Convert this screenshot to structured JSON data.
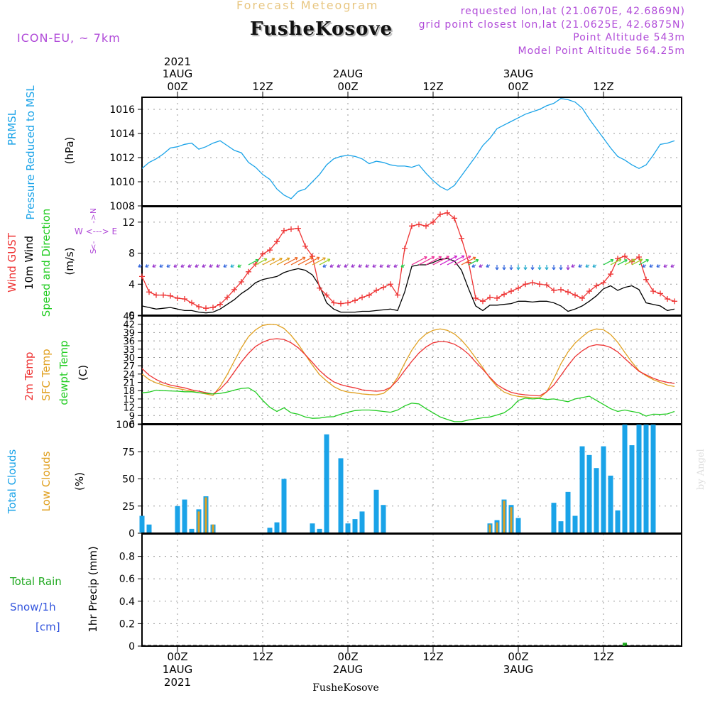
{
  "header": {
    "super_title": "Forecast Meteogram",
    "title": "FusheKosove",
    "model": "ICON-EU, ~ 7km",
    "requested": "requested lon,lat (21.0670E, 42.6869N)",
    "closest": "grid point closest lon,lat (21.0625E, 42.6875N)",
    "point_altitude": "Point Altitude 543m",
    "model_altitude": "Model Point Altitude 564.25m"
  },
  "credit": "by Angel",
  "colors": {
    "pressure": "#1aa3e8",
    "gust": "#ee3333",
    "wind": "#000000",
    "temp2m": "#ee3333",
    "sfc": "#e0a020",
    "dewpt": "#22cc22",
    "total_clouds": "#1aa3e8",
    "low_clouds": "#e0a020",
    "rain": "#22aa22",
    "snow": "#3355dd",
    "compass": "#b04ad8"
  },
  "time_axis": {
    "top_year": "2021",
    "top_labels": [
      {
        "h": 0,
        "l1": "1AUG",
        "l2": "00Z"
      },
      {
        "h": 12,
        "l1": "",
        "l2": "12Z"
      },
      {
        "h": 24,
        "l1": "2AUG",
        "l2": "00Z"
      },
      {
        "h": 36,
        "l1": "",
        "l2": "12Z"
      },
      {
        "h": 48,
        "l1": "3AUG",
        "l2": "00Z"
      },
      {
        "h": 60,
        "l1": "",
        "l2": "12Z"
      }
    ],
    "bottom_labels": [
      {
        "h": 0,
        "l1": "00Z",
        "l2": "1AUG",
        "l3": "2021"
      },
      {
        "h": 12,
        "l1": "12Z",
        "l2": "",
        "l3": ""
      },
      {
        "h": 24,
        "l1": "00Z",
        "l2": "2AUG",
        "l3": ""
      },
      {
        "h": 36,
        "l1": "12Z",
        "l2": "",
        "l3": ""
      },
      {
        "h": 48,
        "l1": "00Z",
        "l2": "3AUG",
        "l3": ""
      },
      {
        "h": 60,
        "l1": "12Z",
        "l2": "",
        "l3": ""
      }
    ],
    "bottom_title": "FusheKosove"
  },
  "chart_data": [
    {
      "type": "line",
      "id": "pressure",
      "ylabels": [
        "PRMSL",
        "Pressure Reduced to MSL",
        "(hPa)"
      ],
      "ylim": [
        1008,
        1017
      ],
      "yticks": [
        1008,
        1010,
        1012,
        1014,
        1016
      ],
      "x_hours": [
        -5,
        -4,
        -3,
        -2,
        -1,
        0,
        1,
        2,
        3,
        4,
        5,
        6,
        7,
        8,
        9,
        10,
        11,
        12,
        13,
        14,
        15,
        16,
        17,
        18,
        19,
        20,
        21,
        22,
        23,
        24,
        25,
        26,
        27,
        28,
        29,
        30,
        31,
        32,
        33,
        34,
        35,
        36,
        37,
        38,
        39,
        40,
        41,
        42,
        43,
        44,
        45,
        46,
        47,
        48,
        49,
        50,
        51,
        52,
        53,
        54,
        55,
        56,
        57,
        58,
        59,
        60,
        61,
        62,
        63,
        64,
        65,
        66,
        67,
        68,
        69,
        70
      ],
      "values": [
        1011.1,
        1011.6,
        1011.9,
        1012.3,
        1012.8,
        1012.9,
        1013.1,
        1013.2,
        1012.7,
        1012.9,
        1013.2,
        1013.4,
        1013.0,
        1012.6,
        1012.4,
        1011.6,
        1011.2,
        1010.6,
        1010.2,
        1009.4,
        1008.9,
        1008.6,
        1009.2,
        1009.4,
        1010.0,
        1010.6,
        1011.4,
        1011.9,
        1012.1,
        1012.2,
        1012.1,
        1011.9,
        1011.5,
        1011.7,
        1011.6,
        1011.4,
        1011.3,
        1011.3,
        1011.2,
        1011.4,
        1010.7,
        1010.1,
        1009.6,
        1009.3,
        1009.7,
        1010.5,
        1011.3,
        1012.1,
        1013.0,
        1013.6,
        1014.4,
        1014.7,
        1015.0,
        1015.3,
        1015.6,
        1015.8,
        1016.0,
        1016.3,
        1016.5,
        1016.9,
        1016.8,
        1016.6,
        1016.1,
        1015.2,
        1014.4,
        1013.6,
        1012.8,
        1012.1,
        1011.8,
        1011.4,
        1011.1,
        1011.4,
        1012.2,
        1013.1,
        1013.2,
        1013.4
      ]
    },
    {
      "type": "line",
      "id": "wind",
      "ylabels": [
        "Wind GUST",
        "10m Wind",
        "Speed and Direction",
        "(m/s)"
      ],
      "compass": [
        "N",
        "-",
        ">",
        "W <-",
        "-",
        "-> E",
        "<",
        "-",
        "S"
      ],
      "ylim": [
        0,
        14
      ],
      "yticks": [
        0,
        4,
        8,
        12
      ],
      "x_hours": [
        -5,
        -4,
        -3,
        -2,
        -1,
        0,
        1,
        2,
        3,
        4,
        5,
        6,
        7,
        8,
        9,
        10,
        11,
        12,
        13,
        14,
        15,
        16,
        17,
        18,
        19,
        20,
        21,
        22,
        23,
        24,
        25,
        26,
        27,
        28,
        29,
        30,
        31,
        32,
        33,
        34,
        35,
        36,
        37,
        38,
        39,
        40,
        41,
        42,
        43,
        44,
        45,
        46,
        47,
        48,
        49,
        50,
        51,
        52,
        53,
        54,
        55,
        56,
        57,
        58,
        59,
        60,
        61,
        62,
        63,
        64,
        65,
        66,
        67,
        68,
        69,
        70
      ],
      "series": [
        {
          "name": "Wind GUST",
          "values": [
            5.0,
            3.0,
            2.6,
            2.6,
            2.5,
            2.2,
            2.1,
            1.6,
            1.1,
            0.9,
            1.0,
            1.4,
            2.3,
            3.3,
            4.3,
            5.6,
            6.6,
            7.9,
            8.4,
            9.5,
            10.9,
            11.1,
            11.2,
            8.9,
            7.6,
            3.5,
            2.6,
            1.6,
            1.5,
            1.6,
            1.9,
            2.3,
            2.6,
            3.2,
            3.6,
            4.0,
            2.6,
            8.6,
            11.5,
            11.7,
            11.5,
            12.0,
            13.0,
            13.2,
            12.5,
            9.9,
            6.8,
            2.2,
            1.8,
            2.3,
            2.2,
            2.7,
            3.1,
            3.5,
            4.0,
            4.2,
            4.0,
            3.9,
            3.2,
            3.3,
            3.0,
            2.6,
            2.2,
            3.1,
            3.8,
            4.2,
            5.3,
            7.3,
            7.6,
            6.9,
            7.5,
            4.6,
            3.1,
            2.8,
            2.1,
            1.8
          ]
        },
        {
          "name": "10m Wind",
          "values": [
            1.2,
            1.0,
            0.8,
            0.9,
            1.0,
            0.8,
            0.6,
            0.6,
            0.4,
            0.3,
            0.4,
            0.8,
            1.4,
            2.0,
            2.8,
            3.4,
            4.2,
            4.6,
            4.8,
            5.0,
            5.5,
            5.8,
            6.0,
            5.8,
            5.2,
            3.8,
            1.6,
            0.8,
            0.4,
            0.4,
            0.4,
            0.5,
            0.5,
            0.6,
            0.7,
            0.8,
            0.6,
            3.0,
            6.3,
            6.5,
            6.5,
            6.8,
            7.2,
            7.3,
            7.0,
            5.8,
            3.4,
            1.2,
            0.6,
            1.3,
            1.3,
            1.4,
            1.5,
            1.8,
            1.8,
            1.7,
            1.8,
            1.8,
            1.6,
            1.2,
            0.5,
            0.8,
            1.2,
            1.8,
            2.5,
            3.4,
            3.8,
            3.2,
            3.6,
            3.8,
            3.3,
            1.6,
            1.4,
            1.2,
            0.6,
            0.8
          ]
        }
      ],
      "barbs": {
        "y_value": 6.5,
        "hours": [
          -5,
          -4,
          -3,
          -2,
          -1,
          0,
          1,
          2,
          3,
          4,
          5,
          6,
          7,
          8,
          9,
          10,
          11,
          12,
          13,
          14,
          15,
          16,
          17,
          18,
          19,
          20,
          21,
          22,
          23,
          24,
          25,
          26,
          27,
          28,
          29,
          30,
          31,
          32,
          33,
          34,
          35,
          36,
          37,
          38,
          39,
          40,
          41,
          42,
          43,
          44,
          45,
          46,
          47,
          48,
          49,
          50,
          51,
          52,
          53,
          54,
          55,
          56,
          57,
          58,
          59,
          60,
          61,
          62,
          63,
          64,
          65,
          66,
          67,
          68,
          69,
          70
        ]
      }
    },
    {
      "type": "line",
      "id": "temperature",
      "ylabels": [
        "2m Temp",
        "SFC Temp",
        "dewpt Temp",
        "(C)"
      ],
      "ylim": [
        6,
        45
      ],
      "yticks": [
        6,
        9,
        12,
        15,
        18,
        21,
        24,
        27,
        30,
        33,
        36,
        39,
        42,
        45
      ],
      "x_hours": [
        -5,
        -4,
        -3,
        -2,
        -1,
        0,
        1,
        2,
        3,
        4,
        5,
        6,
        7,
        8,
        9,
        10,
        11,
        12,
        13,
        14,
        15,
        16,
        17,
        18,
        19,
        20,
        21,
        22,
        23,
        24,
        25,
        26,
        27,
        28,
        29,
        30,
        31,
        32,
        33,
        34,
        35,
        36,
        37,
        38,
        39,
        40,
        41,
        42,
        43,
        44,
        45,
        46,
        47,
        48,
        49,
        50,
        51,
        52,
        53,
        54,
        55,
        56,
        57,
        58,
        59,
        60,
        61,
        62,
        63,
        64,
        65,
        66,
        67,
        68,
        69,
        70
      ],
      "series": [
        {
          "name": "2m Temp",
          "values": [
            26.0,
            23.6,
            22.0,
            20.8,
            20.0,
            19.5,
            19.0,
            18.3,
            17.8,
            17.3,
            16.8,
            18.5,
            21.2,
            24.8,
            28.4,
            31.5,
            34.0,
            35.5,
            36.5,
            36.8,
            36.5,
            35.3,
            33.5,
            31.0,
            28.2,
            25.3,
            23.0,
            21.2,
            20.2,
            19.5,
            19.0,
            18.3,
            18.0,
            17.8,
            18.0,
            19.2,
            21.8,
            25.3,
            28.6,
            31.6,
            33.8,
            35.3,
            35.8,
            35.6,
            34.8,
            33.3,
            31.2,
            28.3,
            25.7,
            22.8,
            20.2,
            18.6,
            17.4,
            16.8,
            16.5,
            16.3,
            16.1,
            17.6,
            20.0,
            23.5,
            27.1,
            30.3,
            32.4,
            34.0,
            34.6,
            34.4,
            33.6,
            32.0,
            29.6,
            27.3,
            25.0,
            23.7,
            22.5,
            21.6,
            21.0,
            20.6
          ]
        },
        {
          "name": "SFC Temp",
          "values": [
            24.0,
            22.0,
            20.8,
            20.0,
            19.3,
            18.8,
            18.3,
            17.8,
            17.3,
            16.8,
            16.3,
            19.5,
            23.8,
            28.7,
            33.5,
            37.5,
            40.0,
            41.6,
            42.0,
            41.8,
            40.5,
            38.0,
            34.8,
            31.0,
            27.2,
            23.8,
            21.5,
            19.5,
            18.2,
            17.5,
            17.2,
            16.8,
            16.6,
            16.5,
            17.0,
            19.0,
            22.8,
            27.9,
            32.6,
            36.2,
            38.5,
            39.8,
            40.3,
            39.8,
            38.5,
            36.3,
            33.3,
            29.8,
            26.3,
            22.5,
            19.5,
            17.5,
            16.5,
            15.9,
            15.7,
            15.5,
            15.4,
            17.6,
            22.3,
            27.7,
            32.0,
            35.2,
            37.5,
            39.5,
            40.3,
            40.0,
            38.3,
            35.5,
            31.8,
            28.3,
            25.2,
            23.4,
            22.0,
            21.0,
            20.0,
            19.5
          ]
        },
        {
          "name": "dewpt Temp",
          "values": [
            17.2,
            17.5,
            18.2,
            18.0,
            17.9,
            17.8,
            17.6,
            17.6,
            17.3,
            17.0,
            16.8,
            17.0,
            17.5,
            18.2,
            18.8,
            19.0,
            17.5,
            14.5,
            12.0,
            10.5,
            11.8,
            10.0,
            9.5,
            8.5,
            8.0,
            8.1,
            8.5,
            8.6,
            9.5,
            10.2,
            10.8,
            11.0,
            11.0,
            10.8,
            10.5,
            10.2,
            11.0,
            12.5,
            13.5,
            13.2,
            11.5,
            10.0,
            8.5,
            7.6,
            6.8,
            6.8,
            7.4,
            7.8,
            8.2,
            8.5,
            9.2,
            10.0,
            11.8,
            14.5,
            15.3,
            15.0,
            15.2,
            14.8,
            15.0,
            14.5,
            14.0,
            15.0,
            15.5,
            16.0,
            14.5,
            13.0,
            11.5,
            10.5,
            11.0,
            10.5,
            10.0,
            8.8,
            9.5,
            9.4,
            9.6,
            10.5
          ]
        }
      ]
    },
    {
      "type": "bar",
      "id": "clouds",
      "ylabels": [
        "Total Clouds",
        "Low Clouds",
        "(%)"
      ],
      "ylim": [
        0,
        100
      ],
      "yticks": [
        0,
        25,
        50,
        75,
        100
      ],
      "x_hours": [
        -5,
        -4,
        -3,
        -2,
        -1,
        0,
        1,
        2,
        3,
        4,
        5,
        6,
        7,
        8,
        9,
        10,
        11,
        12,
        13,
        14,
        15,
        16,
        17,
        18,
        19,
        20,
        21,
        22,
        23,
        24,
        25,
        26,
        27,
        28,
        29,
        30,
        31,
        32,
        33,
        34,
        35,
        36,
        37,
        38,
        39,
        40,
        41,
        42,
        43,
        44,
        45,
        46,
        47,
        48,
        49,
        50,
        51,
        52,
        53,
        54,
        55,
        56,
        57,
        58,
        59,
        60,
        61,
        62,
        63,
        64,
        65,
        66,
        67,
        68,
        69,
        70
      ],
      "series": [
        {
          "name": "Total Clouds",
          "values": [
            16,
            8,
            0,
            0,
            0,
            25,
            31,
            4,
            22,
            34,
            8,
            0,
            0,
            0,
            0,
            0,
            0,
            0,
            5,
            10,
            50,
            0,
            0,
            0,
            9,
            4,
            91,
            0,
            69,
            9,
            13,
            20,
            0,
            40,
            26,
            0,
            0,
            0,
            0,
            0,
            0,
            0,
            0,
            0,
            0,
            0,
            0,
            0,
            0,
            9,
            12,
            31,
            26,
            14,
            0,
            0,
            0,
            0,
            28,
            11,
            38,
            16,
            80,
            72,
            60,
            80,
            53,
            21,
            100,
            81,
            100,
            100,
            100,
            0,
            0,
            0
          ]
        },
        {
          "name": "Low Clouds",
          "values": [
            0,
            0,
            0,
            0,
            0,
            0,
            0,
            0,
            20,
            33,
            8,
            0,
            0,
            0,
            0,
            0,
            0,
            0,
            0,
            0,
            0,
            0,
            0,
            0,
            0,
            0,
            0,
            0,
            0,
            0,
            0,
            0,
            0,
            0,
            0,
            0,
            0,
            0,
            0,
            0,
            0,
            0,
            0,
            0,
            0,
            0,
            0,
            0,
            0,
            8,
            10,
            30,
            24,
            0,
            0,
            0,
            0,
            0,
            0,
            0,
            0,
            0,
            0,
            0,
            0,
            0,
            0,
            0,
            0,
            0,
            0,
            0,
            0,
            0,
            0,
            0
          ]
        }
      ]
    },
    {
      "type": "bar",
      "id": "precip",
      "ylabels": [
        "Total Rain",
        "Snow/1h",
        "[cm]",
        "1hr Precip (mm)"
      ],
      "ylim": [
        0,
        1.0
      ],
      "yticks": [
        0,
        0.2,
        0.4,
        0.6,
        0.8
      ],
      "ytick_labels": [
        "0",
        "0.2",
        "0.4",
        "0.6",
        "0.8"
      ],
      "x_hours": [
        63
      ],
      "series": [
        {
          "name": "Total Rain",
          "values": [
            0.03
          ]
        }
      ]
    }
  ]
}
